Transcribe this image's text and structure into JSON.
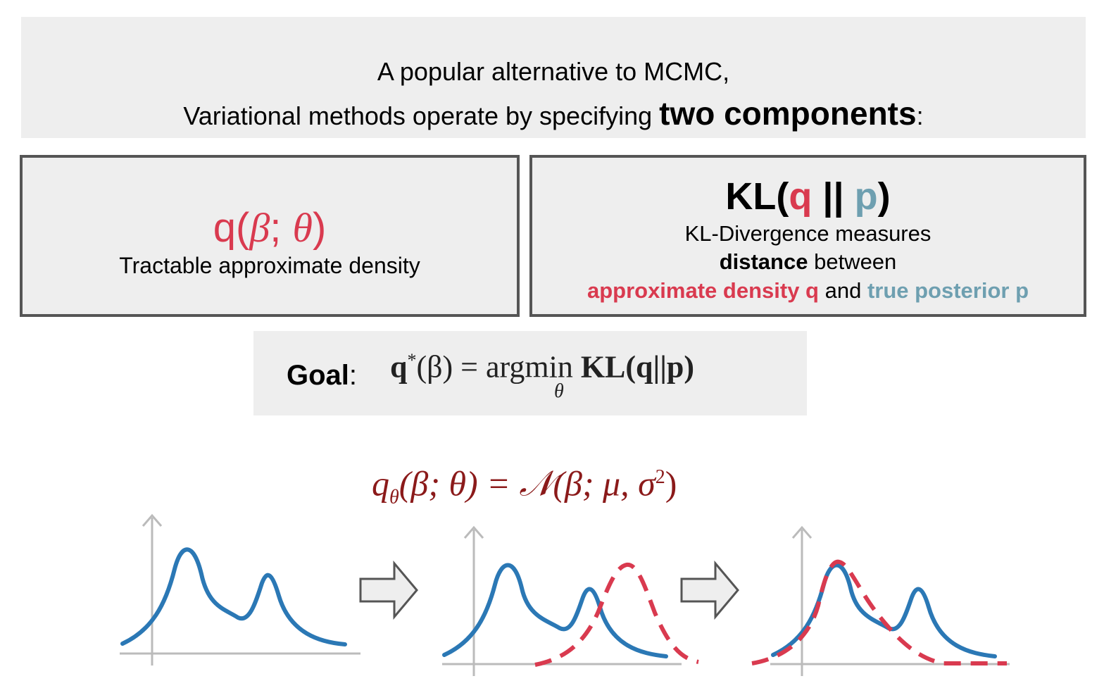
{
  "header": {
    "line1": "A popular alternative to MCMC,",
    "line2_prefix": "Variational methods operate by specifying ",
    "line2_bold": "two components",
    "line2_suffix": ":"
  },
  "left_box": {
    "symbol_prefix": "q(",
    "symbol_beta": "β",
    "symbol_sep": "; ",
    "symbol_theta": "θ",
    "symbol_suffix": ")",
    "description": "Tractable approximate density"
  },
  "right_box": {
    "title_prefix": "KL(",
    "title_q": "q",
    "title_mid": " || ",
    "title_p": "p",
    "title_suffix": ")",
    "line1": "KL-Divergence measures",
    "line2_bold": "distance",
    "line2_rest": " between",
    "line3_red": "approximate density q",
    "line3_mid": " and ",
    "line3_blue": "true posterior p"
  },
  "goal": {
    "label": "Goal",
    "colon": ":",
    "formula_q": "q",
    "formula_star": "*",
    "formula_mid": "(β) = argmin ",
    "formula_kl": "KL(q||p)",
    "subscript": "θ"
  },
  "q_formula": {
    "q": "q",
    "sub": "θ",
    "mid": "(β; θ) = 𝒩(β; μ, σ",
    "sup": "2",
    "end": ")"
  },
  "colors": {
    "red": "#d93a4f",
    "blue": "#2b78b5",
    "teal": "#6e9fb0",
    "dark_red": "#8b1a1a",
    "box_fill": "#eeeeee",
    "border": "#555555"
  }
}
